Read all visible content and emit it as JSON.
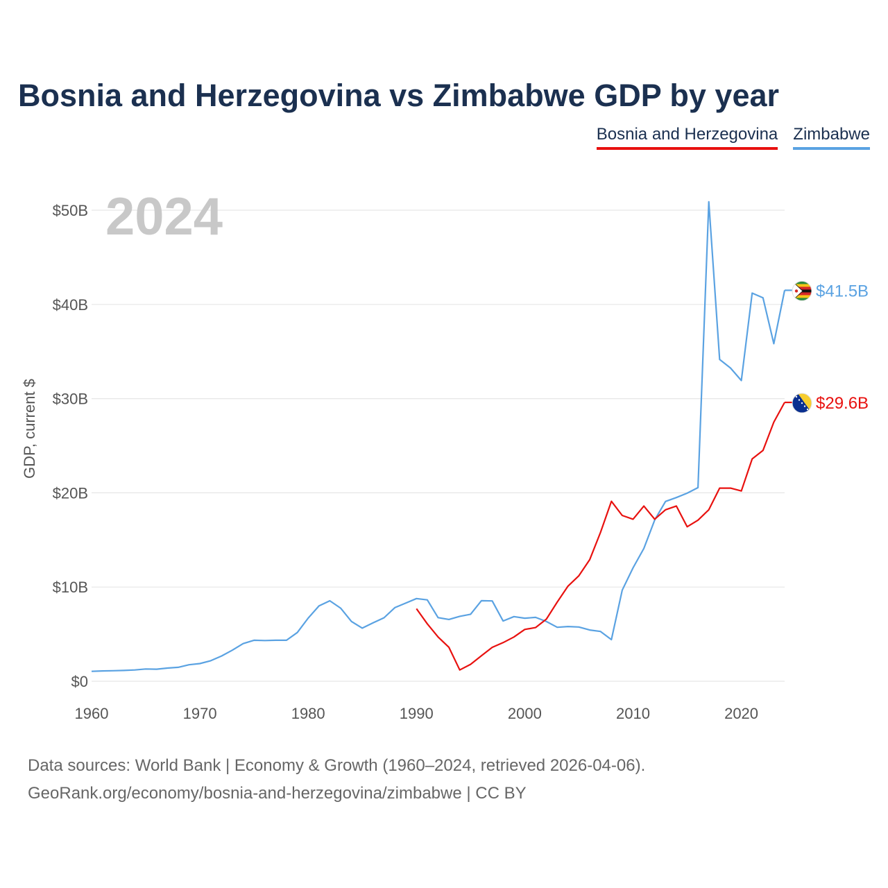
{
  "header": {
    "title": "Bosnia and Herzegovina vs Zimbabwe GDP by year"
  },
  "legend": {
    "items": [
      "Bosnia and Herzegovina",
      "Zimbabwe"
    ]
  },
  "footer": {
    "source_line": "Data sources: World Bank | Economy & Growth (1960–2024, retrieved 2026-04-06).",
    "url_line": "GeoRank.org/economy/bosnia-and-herzegovina/zimbabwe | CC BY"
  },
  "colors": {
    "bosnia": "#e8110f",
    "zimbabwe": "#5aa2e2",
    "title": "#1b3050"
  },
  "chart_data": {
    "type": "line",
    "title": "Bosnia and Herzegovina vs Zimbabwe GDP by year",
    "ylabel": "GDP, current $",
    "xlabel": "",
    "year_label": "2024",
    "xlim": [
      1960,
      2024
    ],
    "ylim": [
      0,
      52
    ],
    "unit": "billions USD",
    "x_ticks": [
      1960,
      1970,
      1980,
      1990,
      2000,
      2010,
      2020
    ],
    "y_ticks": [
      0,
      10,
      20,
      30,
      40,
      50
    ],
    "y_tick_labels": [
      "$0",
      "$10B",
      "$20B",
      "$30B",
      "$40B",
      "$50B"
    ],
    "series": [
      {
        "name": "Bosnia and Herzegovina",
        "color": "#e8110f",
        "end_label": "$29.6B",
        "x": [
          1990,
          1991,
          1992,
          1993,
          1994,
          1995,
          1996,
          1997,
          1998,
          1999,
          2000,
          2001,
          2002,
          2003,
          2004,
          2005,
          2006,
          2007,
          2008,
          2009,
          2010,
          2011,
          2012,
          2013,
          2014,
          2015,
          2016,
          2017,
          2018,
          2019,
          2020,
          2021,
          2022,
          2023,
          2024
        ],
        "values": [
          7.7,
          6.1,
          4.7,
          3.6,
          1.2,
          1.8,
          2.7,
          3.6,
          4.1,
          4.7,
          5.5,
          5.7,
          6.6,
          8.4,
          10.1,
          11.2,
          12.9,
          15.8,
          19.1,
          17.6,
          17.2,
          18.6,
          17.2,
          18.2,
          18.6,
          16.4,
          17.1,
          18.2,
          20.5,
          20.5,
          20.2,
          23.6,
          24.5,
          27.5,
          29.6
        ]
      },
      {
        "name": "Zimbabwe",
        "color": "#5aa2e2",
        "end_label": "$41.5B",
        "x": [
          1960,
          1961,
          1962,
          1963,
          1964,
          1965,
          1966,
          1967,
          1968,
          1969,
          1970,
          1971,
          1972,
          1973,
          1974,
          1975,
          1976,
          1977,
          1978,
          1979,
          1980,
          1981,
          1982,
          1983,
          1984,
          1985,
          1986,
          1987,
          1988,
          1989,
          1990,
          1991,
          1992,
          1993,
          1994,
          1995,
          1996,
          1997,
          1998,
          1999,
          2000,
          2001,
          2002,
          2003,
          2004,
          2005,
          2006,
          2007,
          2008,
          2009,
          2010,
          2011,
          2012,
          2013,
          2014,
          2015,
          2016,
          2017,
          2018,
          2019,
          2020,
          2021,
          2022,
          2023,
          2024
        ],
        "values": [
          1.05,
          1.1,
          1.12,
          1.15,
          1.2,
          1.3,
          1.28,
          1.4,
          1.48,
          1.75,
          1.88,
          2.18,
          2.68,
          3.3,
          4.0,
          4.35,
          4.32,
          4.35,
          4.35,
          5.18,
          6.7,
          8.0,
          8.54,
          7.76,
          6.35,
          5.64,
          6.2,
          6.74,
          7.81,
          8.29,
          8.78,
          8.64,
          6.75,
          6.56,
          6.89,
          7.11,
          8.55,
          8.53,
          6.4,
          6.86,
          6.69,
          6.78,
          6.34,
          5.73,
          5.81,
          5.76,
          5.44,
          5.29,
          4.42,
          9.67,
          12.04,
          14.1,
          17.11,
          19.09,
          19.5,
          19.96,
          20.55,
          50.9,
          34.16,
          33.25,
          31.92,
          41.2,
          40.7,
          35.83,
          41.5
        ]
      }
    ]
  }
}
